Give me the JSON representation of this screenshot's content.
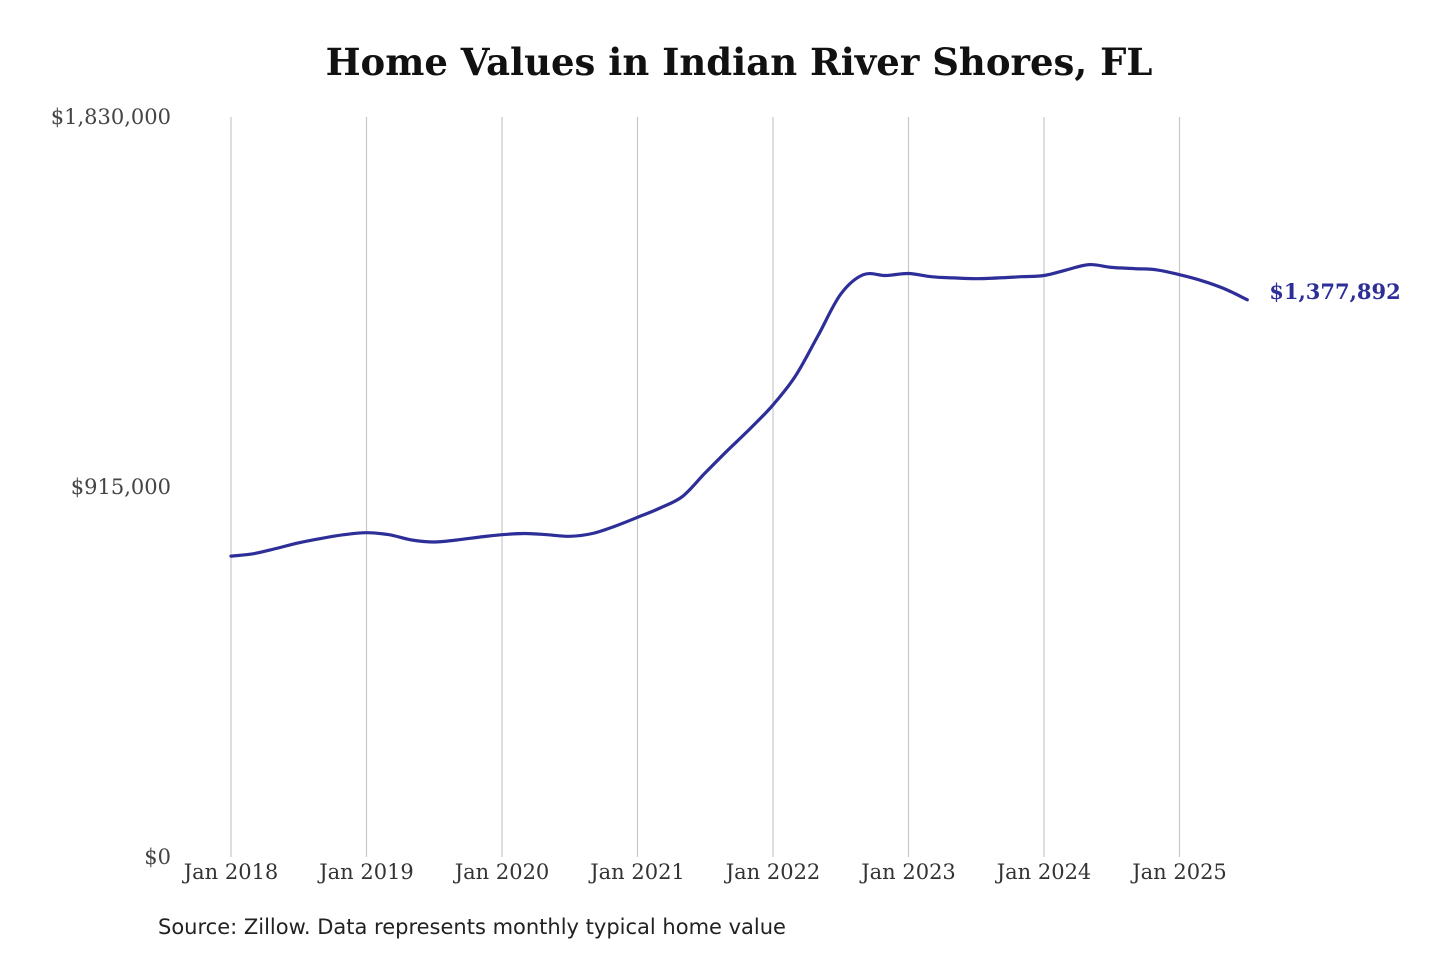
{
  "chart_data": {
    "type": "line",
    "title": "Home Values in Indian River Shores, FL",
    "source": "Source: Zillow. Data represents monthly typical home value",
    "xlabel": "",
    "ylabel": "",
    "x_ticks": [
      "Jan 2018",
      "Jan 2019",
      "Jan 2020",
      "Jan 2021",
      "Jan 2022",
      "Jan 2023",
      "Jan 2024",
      "Jan 2025"
    ],
    "y_ticks": [
      "$0",
      "$915,000",
      "$1,830,000"
    ],
    "y_tick_values": [
      0,
      915000,
      1830000
    ],
    "ylim": [
      0,
      1830000
    ],
    "x_range": [
      "2018-01",
      "2025-07"
    ],
    "grid": "vertical",
    "end_label": "$1,377,892",
    "series": [
      {
        "name": "",
        "color": "#2e2e99",
        "points": [
          [
            "2018-01",
            744000
          ],
          [
            "2018-03",
            750000
          ],
          [
            "2018-05",
            763000
          ],
          [
            "2018-07",
            777000
          ],
          [
            "2018-09",
            788000
          ],
          [
            "2018-11",
            797000
          ],
          [
            "2019-01",
            802000
          ],
          [
            "2019-03",
            797000
          ],
          [
            "2019-05",
            784000
          ],
          [
            "2019-07",
            779000
          ],
          [
            "2019-09",
            784000
          ],
          [
            "2019-11",
            791000
          ],
          [
            "2020-01",
            797000
          ],
          [
            "2020-03",
            800000
          ],
          [
            "2020-05",
            797000
          ],
          [
            "2020-07",
            793000
          ],
          [
            "2020-09",
            800000
          ],
          [
            "2020-11",
            818000
          ],
          [
            "2021-01",
            840000
          ],
          [
            "2021-03",
            863000
          ],
          [
            "2021-05",
            892000
          ],
          [
            "2021-07",
            950000
          ],
          [
            "2021-09",
            1006000
          ],
          [
            "2021-11",
            1060000
          ],
          [
            "2022-01",
            1118000
          ],
          [
            "2022-03",
            1190000
          ],
          [
            "2022-05",
            1290000
          ],
          [
            "2022-07",
            1392000
          ],
          [
            "2022-09",
            1440000
          ],
          [
            "2022-11",
            1438000
          ],
          [
            "2023-01",
            1443000
          ],
          [
            "2023-03",
            1435000
          ],
          [
            "2023-05",
            1432000
          ],
          [
            "2023-07",
            1430000
          ],
          [
            "2023-09",
            1432000
          ],
          [
            "2023-11",
            1435000
          ],
          [
            "2024-01",
            1438000
          ],
          [
            "2024-03",
            1452000
          ],
          [
            "2024-05",
            1465000
          ],
          [
            "2024-07",
            1458000
          ],
          [
            "2024-09",
            1455000
          ],
          [
            "2024-11",
            1452000
          ],
          [
            "2025-01",
            1440000
          ],
          [
            "2025-03",
            1425000
          ],
          [
            "2025-05",
            1405000
          ],
          [
            "2025-07",
            1377892
          ]
        ]
      }
    ]
  }
}
